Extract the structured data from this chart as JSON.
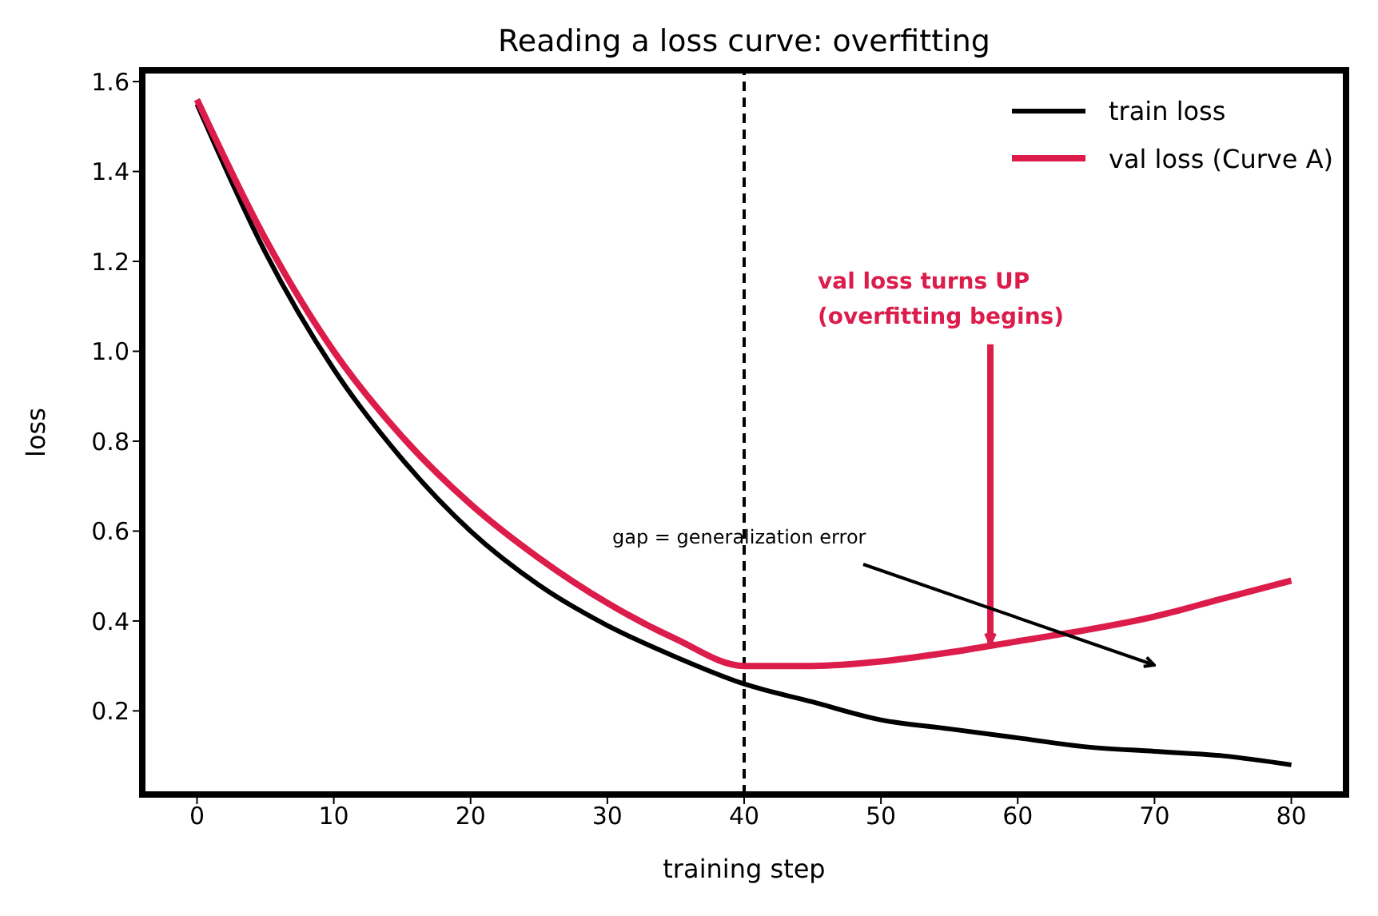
{
  "chart_data": {
    "type": "line",
    "title": "Reading a loss curve: overfitting",
    "xlabel": "training step",
    "ylabel": "loss",
    "x": [
      0,
      5,
      10,
      15,
      20,
      25,
      30,
      35,
      40,
      45,
      50,
      55,
      60,
      65,
      70,
      75,
      80
    ],
    "series": [
      {
        "name": "train loss",
        "color": "#000000",
        "values": [
          1.55,
          1.22,
          0.96,
          0.76,
          0.6,
          0.48,
          0.39,
          0.32,
          0.26,
          0.22,
          0.18,
          0.16,
          0.14,
          0.12,
          0.11,
          0.1,
          0.08
        ]
      },
      {
        "name": "val loss (Curve A)",
        "color": "#dc1c4a",
        "values": [
          1.56,
          1.25,
          1.0,
          0.81,
          0.66,
          0.54,
          0.44,
          0.36,
          0.3,
          0.3,
          0.31,
          0.33,
          0.355,
          0.38,
          0.41,
          0.45,
          0.49
        ]
      }
    ],
    "xlim": [
      -4,
      84
    ],
    "xticks": [
      0,
      10,
      20,
      30,
      40,
      50,
      60,
      70,
      80
    ],
    "ylim": [
      0.014,
      1.625
    ],
    "yticks": [
      {
        "value": 0.2,
        "label": "0.2"
      },
      {
        "value": 0.4,
        "label": "0.4"
      },
      {
        "value": 0.6,
        "label": "0.6"
      },
      {
        "value": 0.8,
        "label": "0.8"
      },
      {
        "value": 1,
        "label": "1.0"
      },
      {
        "value": 1.2,
        "label": "1.2"
      },
      {
        "value": 1.4,
        "label": "1.4"
      },
      {
        "value": 1.6,
        "label": "1.6"
      }
    ],
    "ref_lines": [
      {
        "axis": "x",
        "value": 40,
        "color": "#000000",
        "line_style": "dashed"
      }
    ],
    "annotations": [
      {
        "text": "val loss turns UP\n(overfitting begins)",
        "x": 58,
        "y": 0.34
      },
      "gap = generalization error"
    ],
    "legend": "top right",
    "grid": false,
    "marker": "none",
    "line_style": "solid"
  }
}
